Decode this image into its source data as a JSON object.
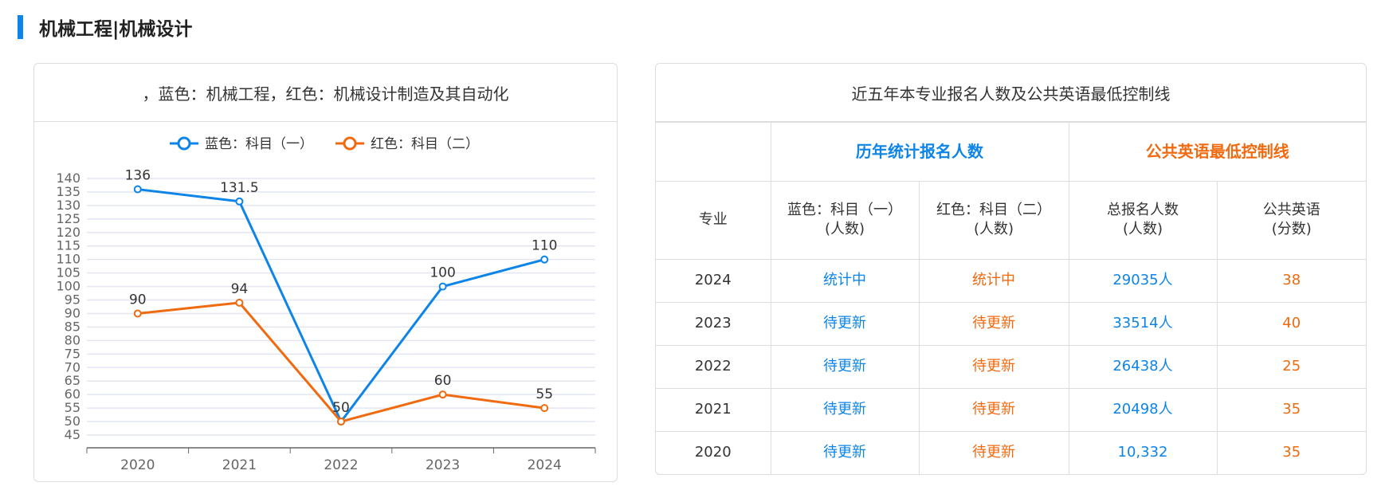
{
  "section_title": "机械工程|机械设计",
  "chart_data": {
    "type": "line",
    "title": "，蓝色：机械工程，红色：机械设计制造及其自动化",
    "categories": [
      "2020",
      "2021",
      "2022",
      "2023",
      "2024"
    ],
    "series": [
      {
        "name": "蓝色：科目（一）",
        "color": "#0d84e8",
        "values": [
          136,
          131.5,
          50,
          100,
          110
        ]
      },
      {
        "name": "红色：科目（二）",
        "color": "#f06a10",
        "values": [
          90,
          94,
          50,
          60,
          55
        ]
      }
    ],
    "ylim": [
      45,
      140
    ],
    "yticks": [
      45,
      50,
      55,
      60,
      65,
      70,
      75,
      80,
      85,
      90,
      95,
      100,
      105,
      110,
      115,
      120,
      125,
      130,
      135,
      140
    ],
    "grid": true,
    "legend": "top"
  },
  "table": {
    "title": "近五年本专业报名人数及公共英语最低控制线",
    "group_headers": [
      "历年统计报名人数",
      "公共英语最低控制线"
    ],
    "sub_headers": [
      "专业",
      "蓝色：科目（一）\n(人数)",
      "红色：科目（二）\n(人数)",
      "总报名人数\n(人数)",
      "公共英语\n(分数)"
    ],
    "rows": [
      [
        "2024",
        "统计中",
        "统计中",
        "29035人",
        "38"
      ],
      [
        "2023",
        "待更新",
        "待更新",
        "33514人",
        "40"
      ],
      [
        "2022",
        "待更新",
        "待更新",
        "26438人",
        "25"
      ],
      [
        "2021",
        "待更新",
        "待更新",
        "20498人",
        "35"
      ],
      [
        "2020",
        "待更新",
        "待更新",
        "10,332",
        "35"
      ]
    ],
    "colors": {
      "blue": "#0d84e8",
      "orange": "#f06a10"
    }
  }
}
